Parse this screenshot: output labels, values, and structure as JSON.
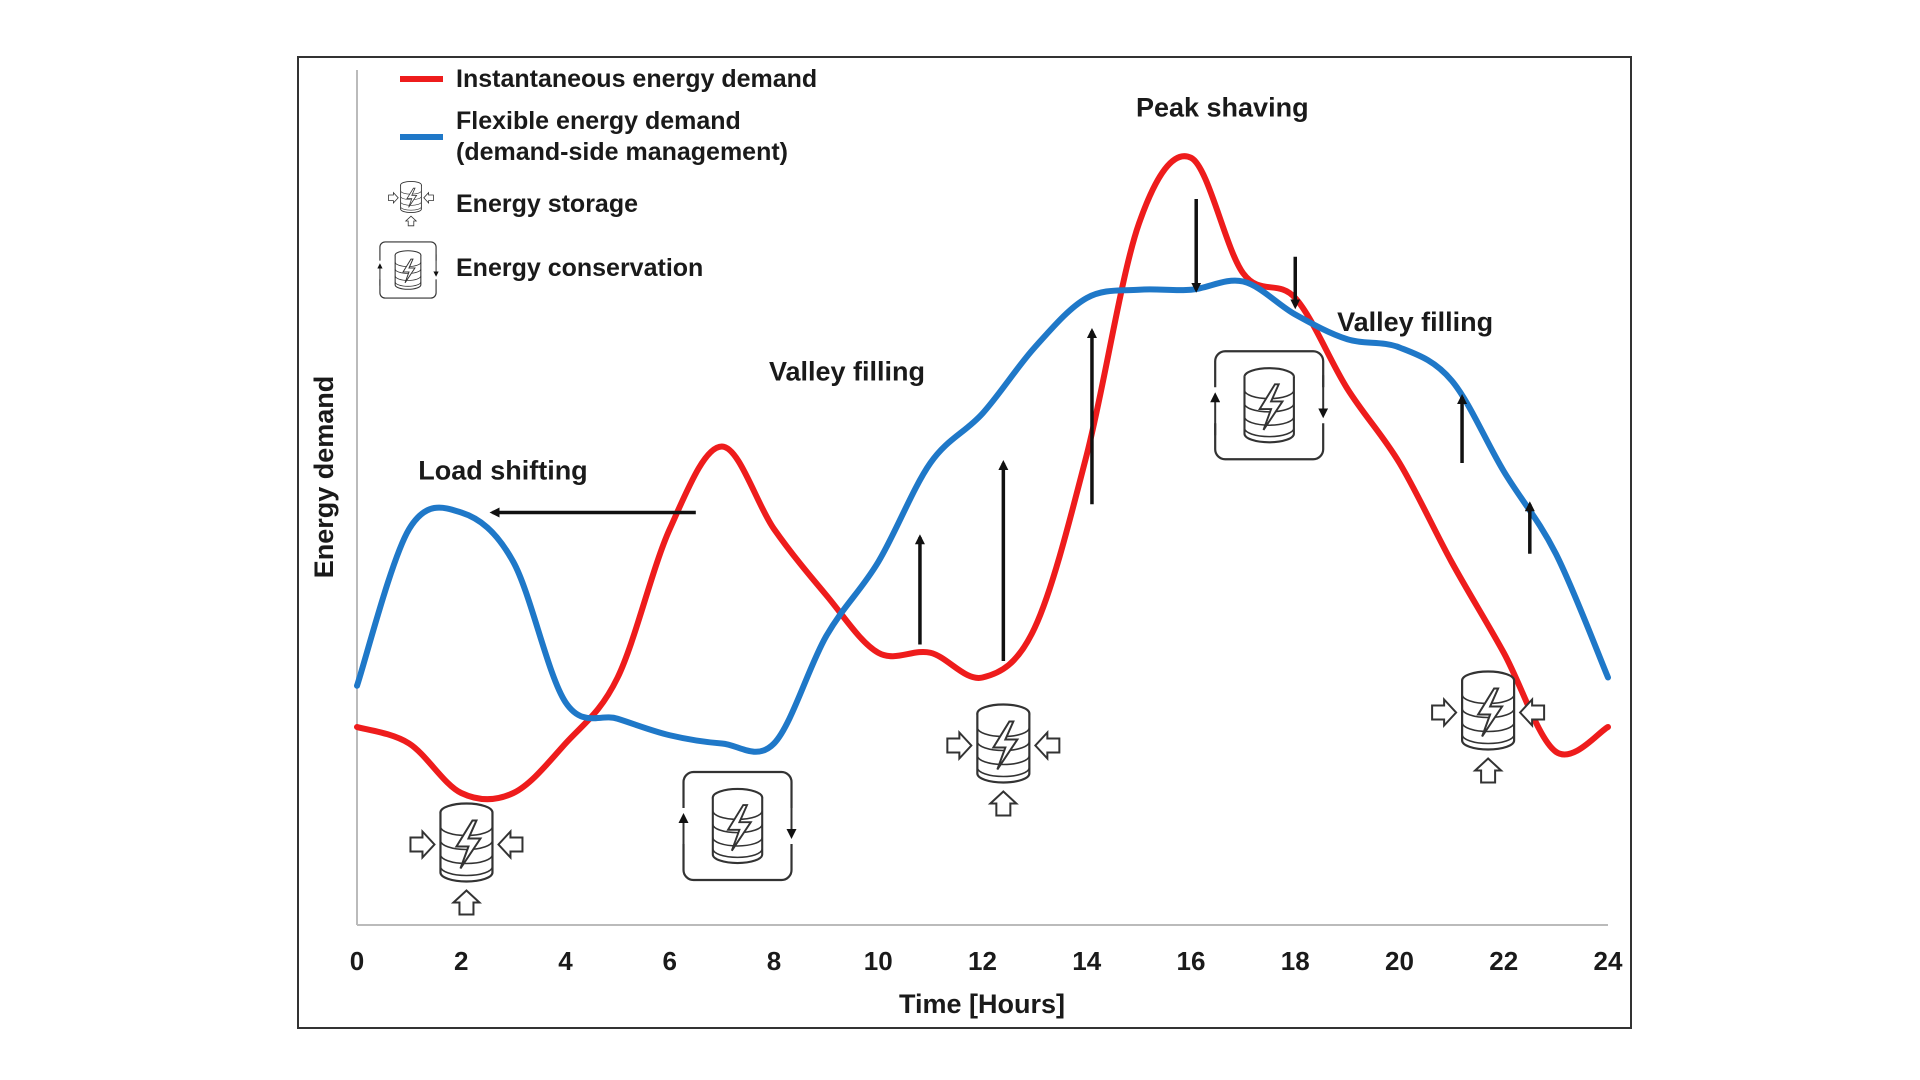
{
  "chart_data": {
    "type": "line",
    "xlabel": "Time [Hours]",
    "ylabel": "Energy demand",
    "xlim": [
      0,
      24
    ],
    "ylim": [
      0,
      100
    ],
    "x_ticks": [
      "0",
      "2",
      "4",
      "6",
      "8",
      "10",
      "12",
      "14",
      "16",
      "18",
      "20",
      "22",
      "24"
    ],
    "grid": false,
    "legend_position": "top-left",
    "series": [
      {
        "name": "Instantaneous energy demand",
        "color": "#ee1c1c",
        "x": [
          0,
          1,
          2,
          3,
          4,
          5,
          6,
          7,
          8,
          9,
          10,
          11,
          12,
          13,
          14,
          15,
          16,
          17,
          18,
          19,
          20,
          21,
          22,
          23,
          24
        ],
        "y": [
          24,
          22,
          16,
          16,
          22,
          30,
          48,
          58,
          48,
          40,
          33,
          33,
          30,
          36,
          57,
          85,
          93,
          79,
          76,
          65,
          56,
          44,
          33,
          21,
          24
        ]
      },
      {
        "name": "Flexible energy demand\n(demand-side management)",
        "name_lines": [
          "Flexible energy demand",
          "(demand-side management)"
        ],
        "color": "#1f78c8",
        "x": [
          0,
          1,
          2,
          3,
          4,
          5,
          6,
          7,
          8,
          9,
          10,
          11,
          12,
          13,
          14,
          15,
          16,
          17,
          18,
          19,
          20,
          21,
          22,
          23,
          24
        ],
        "y": [
          29,
          48,
          50,
          44,
          27,
          25,
          23,
          22,
          22,
          35,
          44,
          56,
          62,
          70,
          76,
          77,
          77,
          78,
          74,
          71,
          70,
          66,
          55,
          45,
          30
        ]
      }
    ],
    "legend_extras": [
      {
        "label": "Energy storage",
        "icon": "energy-storage-icon"
      },
      {
        "label": "Energy conservation",
        "icon": "energy-conservation-icon"
      }
    ],
    "annotations": [
      {
        "text": "Peak shaving",
        "x": 16.6,
        "y": 98
      },
      {
        "text": "Valley filling",
        "x": 9.4,
        "y": 66
      },
      {
        "text": "Valley filling",
        "x": 20.3,
        "y": 72
      },
      {
        "text": "Load shifting",
        "x": 2.8,
        "y": 54
      }
    ],
    "arrows": [
      {
        "dir": "left",
        "x1": 6.5,
        "y1": 50,
        "x2": 2.6,
        "y2": 50
      },
      {
        "dir": "up",
        "x1": 10.8,
        "y1": 34,
        "x2": 10.8,
        "y2": 47
      },
      {
        "dir": "up",
        "x1": 12.4,
        "y1": 32,
        "x2": 12.4,
        "y2": 56
      },
      {
        "dir": "up",
        "x1": 14.1,
        "y1": 51,
        "x2": 14.1,
        "y2": 72
      },
      {
        "dir": "down",
        "x1": 16.1,
        "y1": 88,
        "x2": 16.1,
        "y2": 77
      },
      {
        "dir": "down",
        "x1": 18.0,
        "y1": 81,
        "x2": 18.0,
        "y2": 75
      },
      {
        "dir": "up",
        "x1": 21.2,
        "y1": 56,
        "x2": 21.2,
        "y2": 64
      },
      {
        "dir": "up",
        "x1": 22.5,
        "y1": 45,
        "x2": 22.5,
        "y2": 51
      }
    ],
    "icons": [
      {
        "type": "energy-storage-icon",
        "x": 2.1,
        "y": 10
      },
      {
        "type": "energy-conservation-icon",
        "x": 7.3,
        "y": 12
      },
      {
        "type": "energy-storage-icon",
        "x": 12.4,
        "y": 22
      },
      {
        "type": "energy-conservation-icon",
        "x": 17.5,
        "y": 63
      },
      {
        "type": "energy-storage-icon",
        "x": 21.7,
        "y": 26
      }
    ]
  }
}
